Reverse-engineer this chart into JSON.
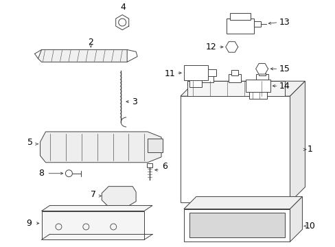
{
  "bg_color": "#ffffff",
  "line_color": "#404040",
  "fig_width": 4.89,
  "fig_height": 3.6,
  "dpi": 100
}
